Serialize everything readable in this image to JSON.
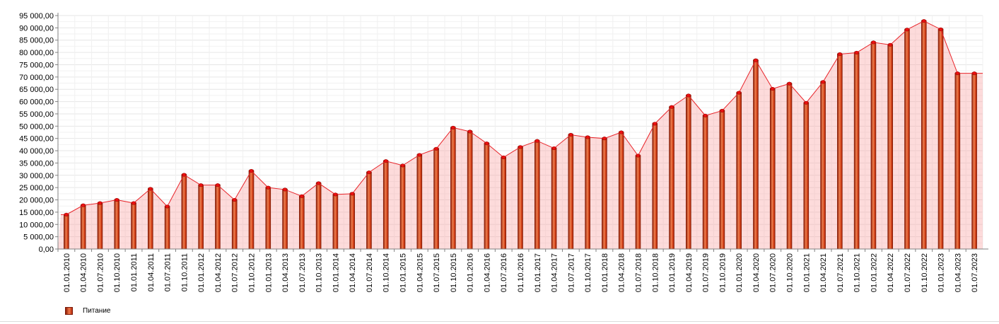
{
  "chart_data": {
    "type": "bar",
    "title": "",
    "xlabel": "",
    "ylabel": "",
    "legend": {
      "position": "bottom-left",
      "entries": [
        "Питание"
      ]
    },
    "grid": true,
    "ylim": [
      0,
      95000
    ],
    "y_ticks": [
      "0,00",
      "5 000,00",
      "10 000,00",
      "15 000,00",
      "20 000,00",
      "25 000,00",
      "30 000,00",
      "35 000,00",
      "40 000,00",
      "45 000,00",
      "50 000,00",
      "55 000,00",
      "60 000,00",
      "65 000,00",
      "70 000,00",
      "75 000,00",
      "80 000,00",
      "85 000,00",
      "90 000,00",
      "95 000,00"
    ],
    "categories": [
      "01.01.2010",
      "01.04.2010",
      "01.07.2010",
      "01.10.2010",
      "01.01.2011",
      "01.04.2011",
      "01.07.2011",
      "01.10.2011",
      "01.01.2012",
      "01.04.2012",
      "01.07.2012",
      "01.10.2012",
      "01.01.2013",
      "01.04.2013",
      "01.07.2013",
      "01.10.2013",
      "01.01.2014",
      "01.04.2014",
      "01.07.2014",
      "01.10.2014",
      "01.01.2015",
      "01.04.2015",
      "01.07.2015",
      "01.10.2015",
      "01.01.2016",
      "01.04.2016",
      "01.07.2016",
      "01.10.2016",
      "01.01.2017",
      "01.04.2017",
      "01.07.2017",
      "01.10.2017",
      "01.01.2018",
      "01.04.2018",
      "01.07.2018",
      "01.10.2018",
      "01.01.2019",
      "01.04.2019",
      "01.07.2019",
      "01.10.2019",
      "01.01.2020",
      "01.04.2020",
      "01.07.2020",
      "01.10.2020",
      "01.01.2021",
      "01.04.2021",
      "01.07.2021",
      "01.10.2021",
      "01.01.2022",
      "01.04.2022",
      "01.07.2022",
      "01.10.2022",
      "01.01.2023",
      "01.04.2023",
      "01.07.2023"
    ],
    "series": [
      {
        "name": "Питание",
        "color": "#c8280a",
        "values": [
          14000,
          17800,
          18700,
          20000,
          18700,
          24500,
          17300,
          30200,
          26000,
          26000,
          20000,
          31800,
          25000,
          24200,
          21500,
          26800,
          22200,
          22500,
          31200,
          35800,
          34000,
          38300,
          40800,
          49400,
          47800,
          43000,
          37300,
          41500,
          44000,
          41000,
          46500,
          45500,
          45000,
          47500,
          38000,
          51000,
          57800,
          62500,
          54300,
          56300,
          63600,
          76800,
          65200,
          67300,
          59500,
          68000,
          79300,
          79900,
          84100,
          83100,
          89300,
          92800,
          89400,
          71500,
          71500
        ]
      }
    ]
  }
}
